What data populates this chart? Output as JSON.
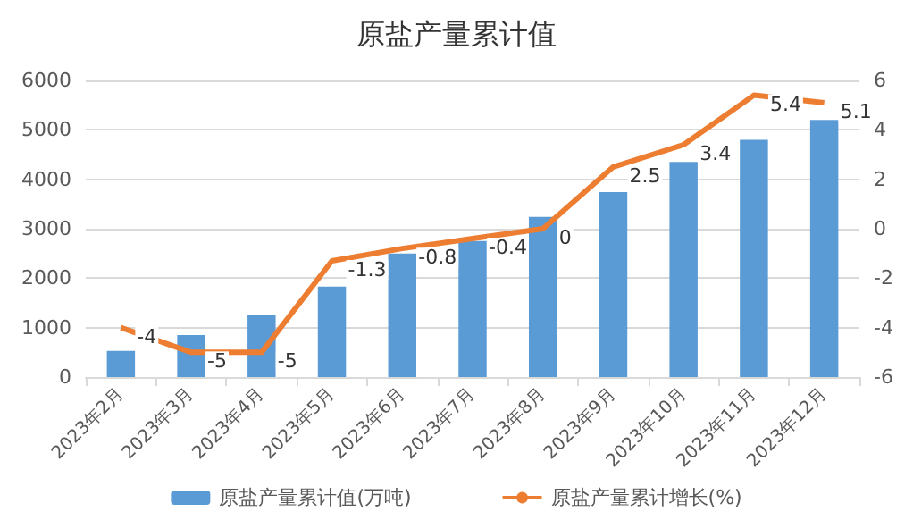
{
  "chart_data": {
    "type": "bar",
    "title": "原盐产量累计值",
    "categories": [
      "2023年2月",
      "2023年3月",
      "2023年4月",
      "2023年5月",
      "2023年6月",
      "2023年7月",
      "2023年8月",
      "2023年9月",
      "2023年10月",
      "2023年11月",
      "2023年12月"
    ],
    "series": [
      {
        "name": "原盐产量累计值(万吨)",
        "color": "#5b9bd5",
        "values": [
          530,
          850,
          1250,
          1830,
          2500,
          2750,
          3240,
          3740,
          4350,
          4800,
          5200
        ]
      },
      {
        "name": "原盐产量累计增长(%)",
        "type": "line",
        "axis": "y2",
        "color": "#ed7d31",
        "values": [
          -4,
          -5,
          -5,
          -1.3,
          -0.8,
          -0.4,
          0,
          2.5,
          3.4,
          5.4,
          5.1
        ],
        "data_labels": true
      }
    ],
    "ylim": [
      0,
      6000
    ],
    "yticks": [
      0,
      1000,
      2000,
      3000,
      4000,
      5000,
      6000
    ],
    "y2lim": [
      -6,
      6
    ],
    "y2ticks": [
      -6,
      -4,
      -2,
      0,
      2,
      4,
      6
    ],
    "grid": "y",
    "legend": "bottom",
    "marker": "none"
  }
}
